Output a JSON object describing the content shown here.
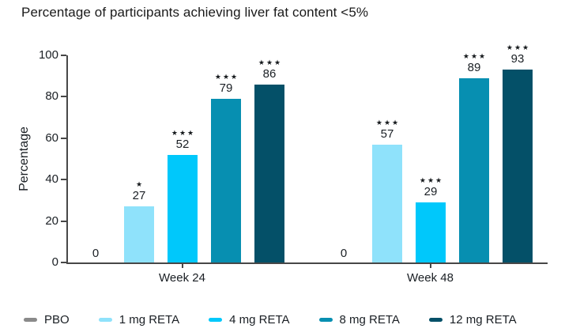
{
  "title": "Percentage of participants achieving liver fat content <5%",
  "chart_data": {
    "type": "bar",
    "title": "Percentage of participants achieving liver fat content <5%",
    "xlabel": "",
    "ylabel": "Percentage",
    "ylim": [
      0,
      100
    ],
    "yticks": [
      0,
      20,
      40,
      60,
      80,
      100
    ],
    "grid": false,
    "legend_position": "bottom",
    "categories": [
      "Week 24",
      "Week 48"
    ],
    "series": [
      {
        "name": "PBO",
        "color": "#8a8a8a",
        "values": [
          0,
          0
        ],
        "annotations": [
          "",
          ""
        ]
      },
      {
        "name": "1 mg RETA",
        "color": "#8fe2fb",
        "values": [
          27,
          57
        ],
        "annotations": [
          "*",
          "***"
        ]
      },
      {
        "name": "4 mg RETA",
        "color": "#00c8fb",
        "values": [
          52,
          29
        ],
        "annotations": [
          "***",
          "***"
        ]
      },
      {
        "name": "8 mg RETA",
        "color": "#078fb1",
        "values": [
          79,
          89
        ],
        "annotations": [
          "***",
          "***"
        ]
      },
      {
        "name": "12 mg RETA",
        "color": "#045068",
        "values": [
          86,
          93
        ],
        "annotations": [
          "***",
          "***"
        ]
      }
    ],
    "zero_value_display": "0"
  }
}
